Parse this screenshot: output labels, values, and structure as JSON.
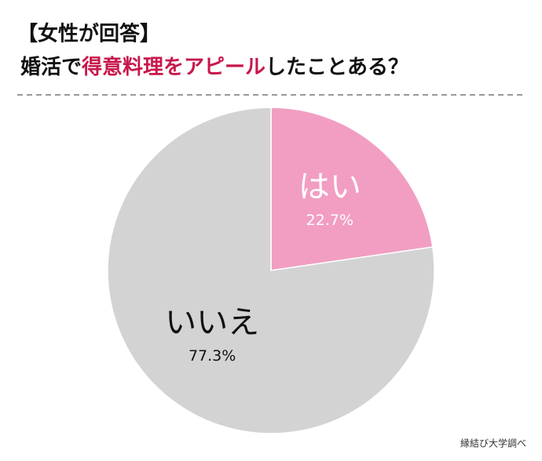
{
  "chart_data": {
    "type": "pie",
    "title": "【女性が回答】",
    "subtitle_parts": [
      "婚活で",
      "得意料理をアピール",
      "したことある？"
    ],
    "subtitle_highlight_color": "#c8174b",
    "categories": [
      "はい",
      "いいえ"
    ],
    "values": [
      22.7,
      77.3
    ],
    "value_labels": [
      "22.7%",
      "77.3%"
    ],
    "colors": [
      "#f19ec2",
      "#d3d3d3"
    ],
    "source": "縁結び大学調べ"
  }
}
